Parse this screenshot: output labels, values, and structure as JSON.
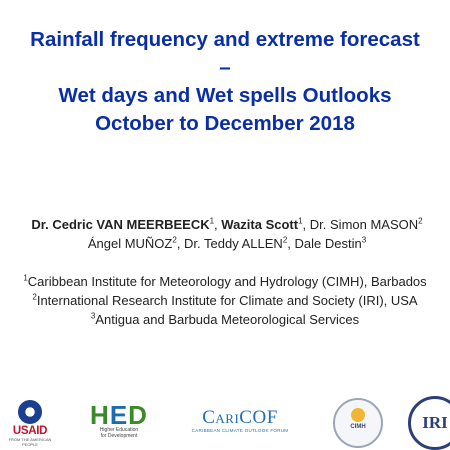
{
  "title": {
    "line1": "Rainfall frequency and extreme forecast",
    "line2": "–",
    "line3": "Wet days and Wet spells Outlooks",
    "line4": "October to December 2018"
  },
  "authors": {
    "a1_name": "Dr. Cedric VAN MEERBEECK",
    "a1_sup": "1",
    "a2_name": "Wazita Scott",
    "a2_sup": "1",
    "a3_name": "Dr. Simon MASON",
    "a3_sup": "2",
    "a4_name": "Ángel MUÑOZ",
    "a4_sup": "2",
    "a5_name": "Dr. Teddy ALLEN",
    "a5_sup": "2",
    "a6_name": "Dale Destin",
    "a6_sup": "3",
    "sep": ", "
  },
  "affiliations": [
    {
      "sup": "1",
      "text": "Caribbean Institute for Meteorology and Hydrology (CIMH), Barbados"
    },
    {
      "sup": "2",
      "text": "International Research Institute for Climate and Society (IRI), USA"
    },
    {
      "sup": "3",
      "text": "Antigua and Barbuda Meteorological Services"
    }
  ],
  "logos": {
    "usaid": {
      "name": "USAID",
      "tagline": "FROM THE AMERICAN PEOPLE"
    },
    "hed": {
      "name_h": "H",
      "name_e": "E",
      "name_d": "D",
      "tagline1": "Higher Education",
      "tagline2": "for Development"
    },
    "caricof": {
      "name": "CariCOF",
      "tagline": "CARIBBEAN CLIMATE OUTLOOK FORUM"
    },
    "cimh": {
      "name": "CIMH"
    },
    "iri": {
      "name": "IRI"
    }
  },
  "colors": {
    "title": "#0a2ea8",
    "usaid_red": "#c8102e",
    "usaid_blue": "#1d3f8f",
    "hed_green": "#3a8a2a",
    "caricof_blue": "#1f6fb5",
    "iri_navy": "#2c3f78"
  }
}
